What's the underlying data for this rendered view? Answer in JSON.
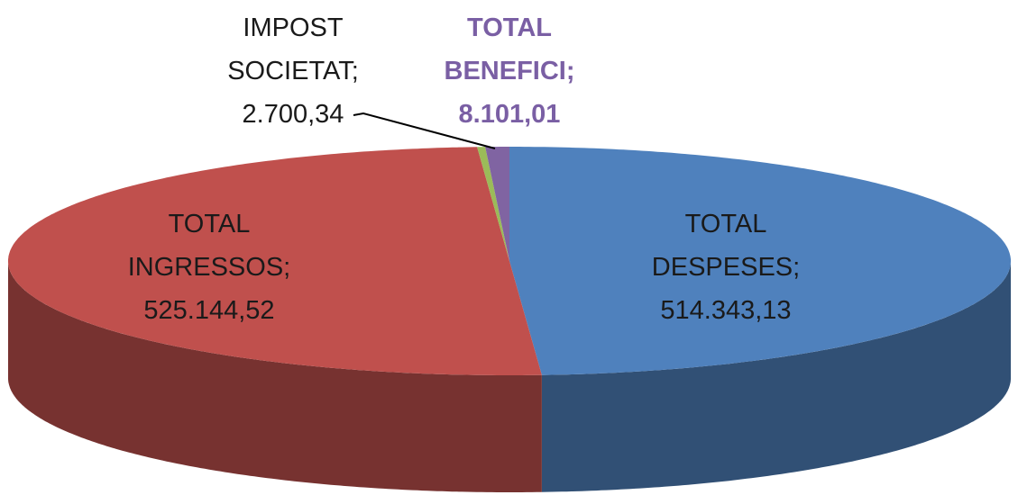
{
  "chart_data": {
    "type": "pie3d",
    "categories": [
      "TOTAL DESPESES;",
      "TOTAL INGRESSOS;",
      "IMPOST SOCIETAT;",
      "TOTAL BENEFICI;"
    ],
    "values": [
      514343.13,
      525144.52,
      2700.34,
      8101.01
    ],
    "value_labels": [
      "514.343,13",
      "525.144,52",
      "2.700,34",
      "8.101,01"
    ],
    "colors": [
      "#4f81bd",
      "#c0504d",
      "#9bbb59",
      "#8064a2"
    ]
  }
}
